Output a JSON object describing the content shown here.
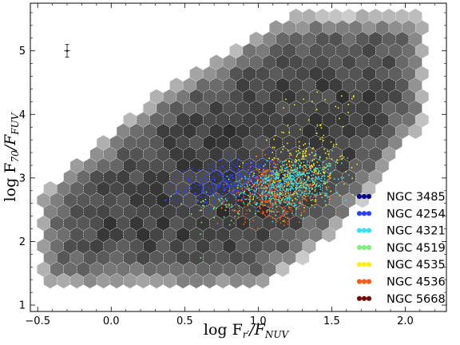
{
  "chart_data": {
    "type": "scatter",
    "title": "",
    "xlabel": {
      "main": "log F",
      "sub1": "r′",
      "mid": "/F",
      "sub2": "NUV"
    },
    "ylabel": {
      "main": "log F",
      "sub1": "70",
      "mid": "/F",
      "sub2": "FUV"
    },
    "xlim": [
      -0.55,
      2.28
    ],
    "ylim": [
      0.9,
      5.75
    ],
    "x_ticks": [
      -0.5,
      0.0,
      0.5,
      1.0,
      1.5,
      2.0
    ],
    "x_tick_labels": [
      "−0.5",
      "0.0",
      "0.5",
      "1.0",
      "1.5",
      "2.0"
    ],
    "y_ticks": [
      1,
      2,
      3,
      4,
      5
    ],
    "y_tick_labels": [
      "1",
      "2",
      "3",
      "4",
      "5"
    ],
    "grid": false,
    "legend_position": "lower-right",
    "background": {
      "kind": "hexbin density (greyscale)",
      "extent_polygon": [
        [
          -0.5,
          1.35
        ],
        [
          -0.5,
          2.75
        ],
        [
          0.35,
          4.4
        ],
        [
          1.2,
          5.55
        ],
        [
          2.15,
          5.6
        ],
        [
          2.15,
          3.95
        ],
        [
          1.6,
          2.3
        ],
        [
          1.2,
          1.55
        ],
        [
          1.0,
          1.25
        ],
        [
          0.0,
          1.25
        ]
      ],
      "dense_core": [
        1.0,
        2.95
      ]
    },
    "error_bar": {
      "x": -0.3,
      "y": 5.0,
      "xerr": 0.02,
      "yerr": 0.1
    },
    "series": [
      {
        "name": "NGC 3485",
        "color": "#0b0a8c",
        "center": [
          1.15,
          2.9
        ],
        "spread": [
          0.2,
          0.22
        ],
        "count": 0
      },
      {
        "name": "NGC 4254",
        "color": "#2a40ff",
        "center": [
          0.82,
          2.95
        ],
        "spread": [
          0.18,
          0.17
        ],
        "count": 420
      },
      {
        "name": "NGC 4321",
        "color": "#33e3f5",
        "center": [
          1.22,
          2.92
        ],
        "spread": [
          0.15,
          0.18
        ],
        "count": 560
      },
      {
        "name": "NGC 4519",
        "color": "#7ef07c",
        "center": [
          0.95,
          2.7
        ],
        "spread": [
          0.22,
          0.2
        ],
        "count": 120
      },
      {
        "name": "NGC 4535",
        "color": "#ffee11",
        "center": [
          1.28,
          3.05
        ],
        "spread": [
          0.16,
          0.28
        ],
        "count": 300
      },
      {
        "name": "NGC 4536",
        "color": "#ff5a10",
        "center": [
          1.12,
          2.75
        ],
        "spread": [
          0.15,
          0.25
        ],
        "count": 340
      },
      {
        "name": "NGC 5668",
        "color": "#7a0707",
        "center": [
          1.05,
          2.85
        ],
        "spread": [
          0.12,
          0.15
        ],
        "count": 20
      }
    ]
  }
}
